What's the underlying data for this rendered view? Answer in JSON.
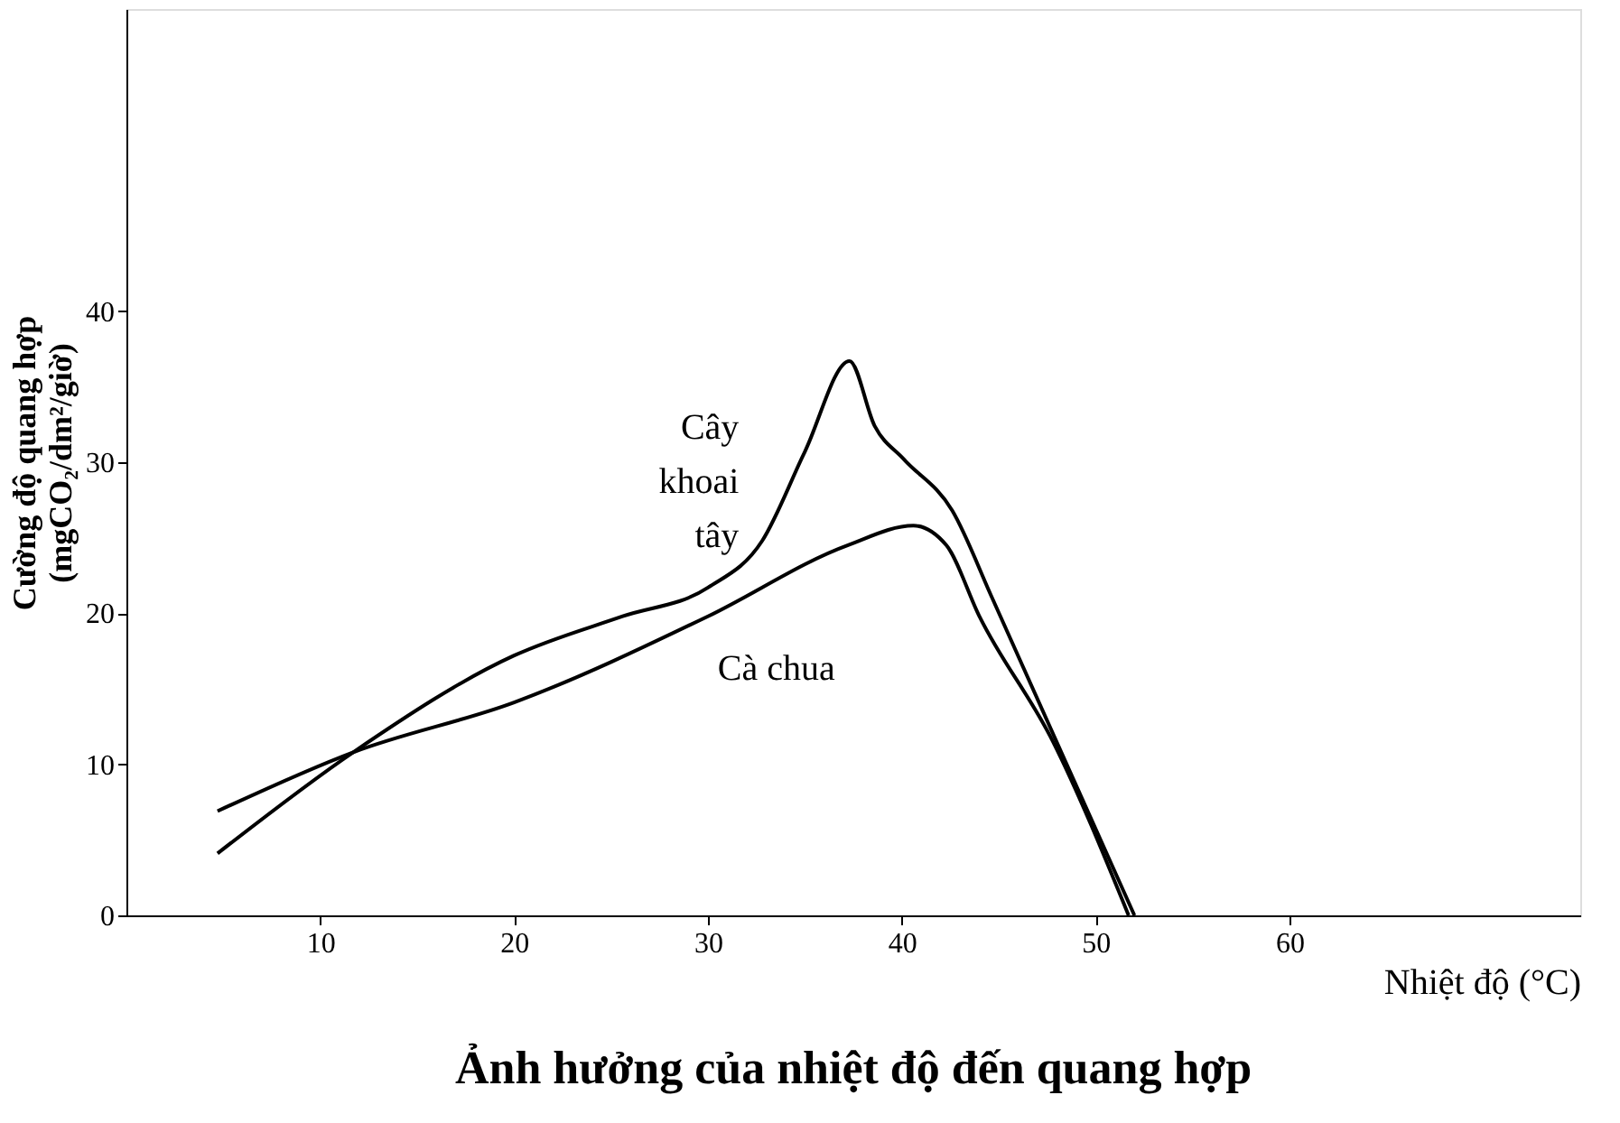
{
  "chart_data": {
    "type": "line",
    "title": "Ảnh hưởng của nhiệt độ đến quang hợp",
    "xlabel": "Nhiệt độ (°C)",
    "ylabel": "Cường độ quang hợp (mgCO₂/dm²/giờ)",
    "series": [
      {
        "name": "Cây khoai tây",
        "color": "#000000",
        "x": [
          4.7,
          11.7,
          20,
          25.6,
          30,
          32.8,
          35,
          37.3,
          38.6,
          40.1,
          42.6,
          44.7,
          52
        ],
        "values": [
          4.1,
          10.8,
          17.2,
          19.8,
          21.7,
          24.8,
          30.7,
          36.7,
          32.4,
          30.2,
          26.8,
          20.9,
          0
        ]
      },
      {
        "name": "Cà chua",
        "color": "#000000",
        "x": [
          4.7,
          11.7,
          20,
          30,
          37.2,
          40.6,
          42.3,
          44,
          47.8,
          51.7
        ],
        "values": [
          6.9,
          10.8,
          14.1,
          19.8,
          24.5,
          25.8,
          24.5,
          19.8,
          11.5,
          0
        ]
      }
    ],
    "xlim": [
      0,
      75
    ],
    "ylim": [
      0,
      60
    ],
    "xticks": [
      10,
      20,
      30,
      40,
      50,
      60
    ],
    "yticks": [
      0,
      10,
      20,
      30,
      40
    ],
    "marker": "none",
    "line_style": "solid"
  }
}
